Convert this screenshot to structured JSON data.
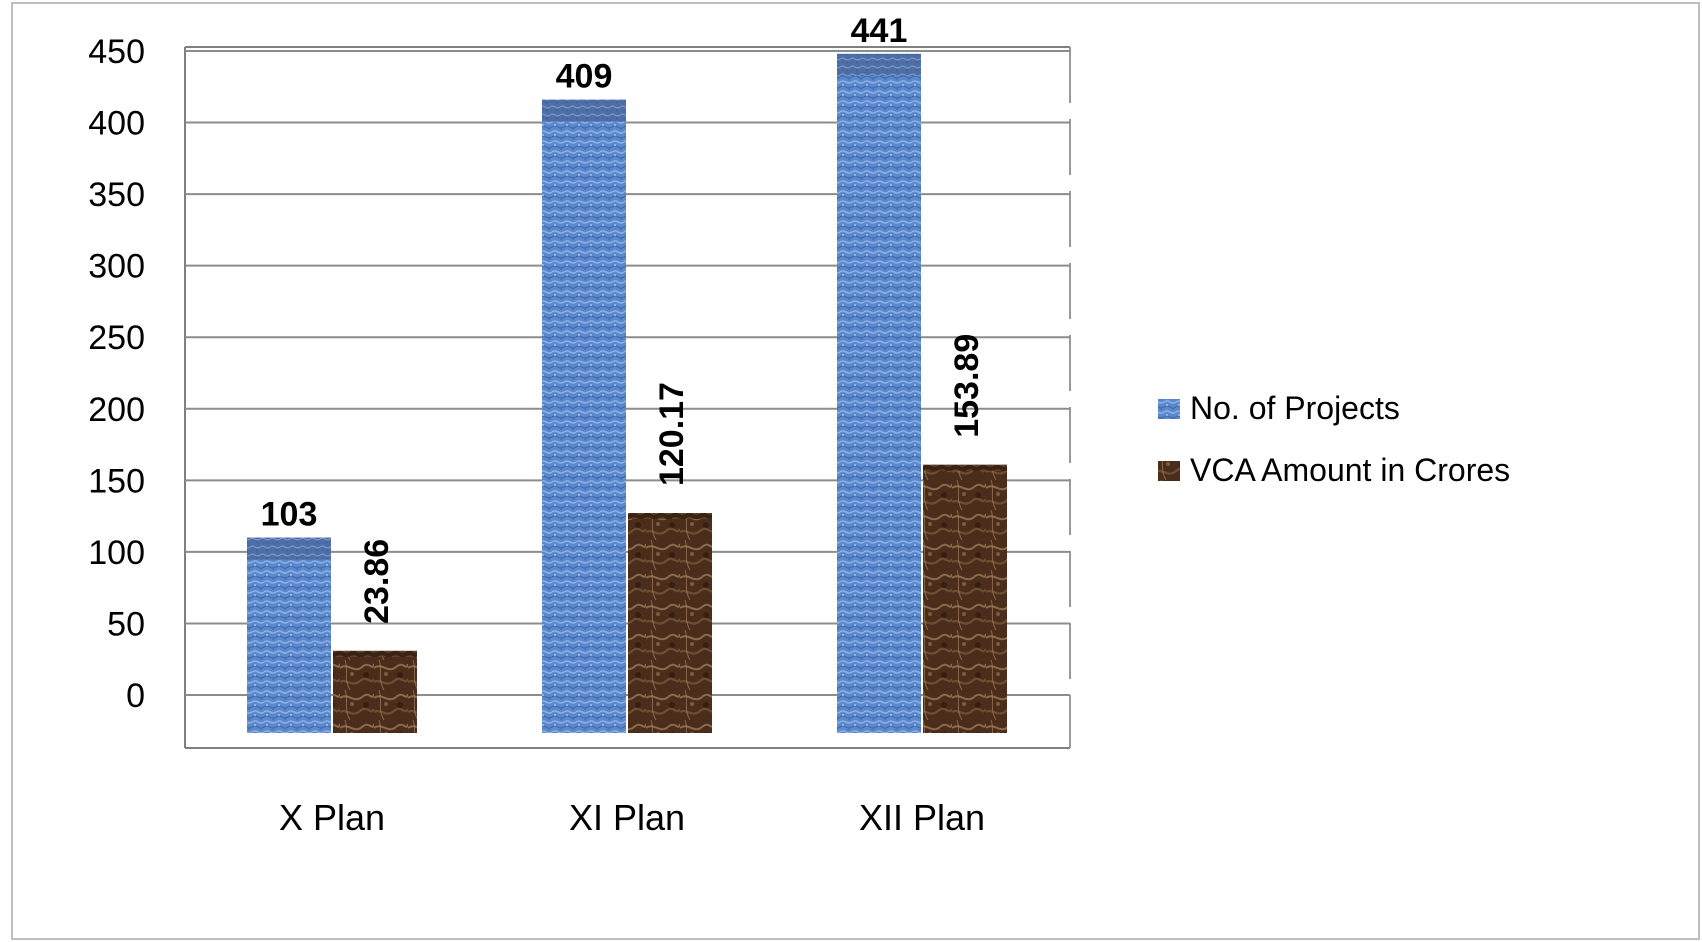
{
  "chart_data": {
    "type": "bar",
    "categories": [
      "X Plan",
      "XI Plan",
      "XII Plan"
    ],
    "series": [
      {
        "name": "No. of Projects",
        "values": [
          103,
          409,
          441
        ],
        "data_labels": [
          "103",
          "409",
          "441"
        ],
        "color": "#5b86c9",
        "label_orientation": "horizontal"
      },
      {
        "name": "VCA Amount in Crores",
        "values": [
          23.86,
          120.17,
          153.89
        ],
        "data_labels": [
          "23.86",
          "120.17",
          "153.89"
        ],
        "color": "#5a3a24",
        "label_orientation": "vertical"
      }
    ],
    "y_ticks": [
      "0",
      "50",
      "100",
      "150",
      "200",
      "250",
      "300",
      "350",
      "400",
      "450"
    ],
    "ylim": [
      0,
      450
    ],
    "grid": true,
    "legend_position": "right",
    "bar_style": "3d-textured"
  }
}
